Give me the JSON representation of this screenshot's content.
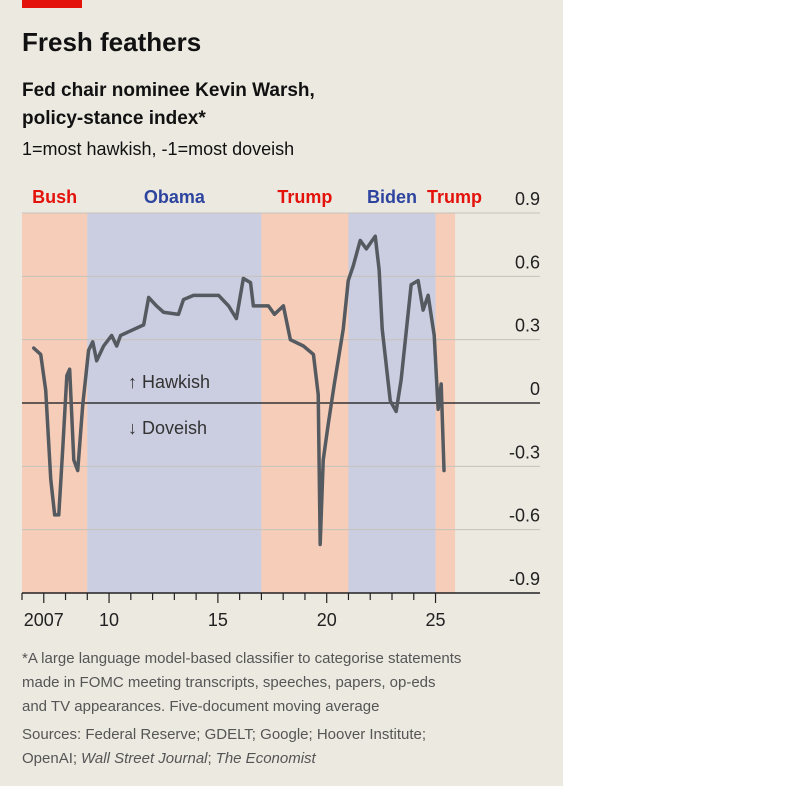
{
  "chart_data": {
    "type": "line",
    "title": "Fresh feathers",
    "subtitle": [
      "Fed chair nominee Kevin Warsh,",
      "policy-stance index*"
    ],
    "scale_note": "1=most hawkish, -1=most doveish",
    "annotations": [
      "↑ Hawkish",
      "↓ Doveish"
    ],
    "notes": [
      "*A large language model-based classifier to categorise statements",
      "made in FOMC meeting transcripts, speeches, papers, op-eds",
      "and TV appearances. Five-document moving average",
      "Sources: Federal Reserve; GDELT; Google; Hoover Institute;"
    ],
    "source_last_line": [
      "OpenAI;",
      "Wall Street Journal",
      ";",
      "The Economist"
    ],
    "periods": [
      {
        "name": "Bush",
        "start": 2006,
        "end": 2009.0,
        "color": "#f6cdb8",
        "label_color": "#e3120b"
      },
      {
        "name": "Obama",
        "start": 2009.0,
        "end": 2017.0,
        "color": "#cbcde0",
        "label_color": "#2e45a0"
      },
      {
        "name": "Trump",
        "start": 2017.0,
        "end": 2021.0,
        "color": "#f6cdb8",
        "label_color": "#e3120b"
      },
      {
        "name": "Biden",
        "start": 2021.0,
        "end": 2025.0,
        "color": "#cbcde0",
        "label_color": "#2e45a0"
      },
      {
        "name": "Trump",
        "start": 2025.0,
        "end": 2025.9,
        "color": "#f6cdb8",
        "label_color": "#e3120b"
      }
    ],
    "x": [
      2006.54,
      2006.86,
      2007.09,
      2007.32,
      2007.5,
      2007.69,
      2007.87,
      2008.06,
      2008.19,
      2008.38,
      2008.56,
      2008.79,
      2009.06,
      2009.25,
      2009.43,
      2009.75,
      2010.12,
      2010.35,
      2010.53,
      2011.59,
      2011.82,
      2012.18,
      2012.5,
      2013.19,
      2013.42,
      2013.88,
      2015.03,
      2015.49,
      2015.85,
      2016.17,
      2016.5,
      2016.63,
      2017.32,
      2017.6,
      2018.01,
      2018.33,
      2018.93,
      2019.39,
      2019.61,
      2019.7,
      2019.84,
      2020.07,
      2020.35,
      2020.76,
      2020.99,
      2021.22,
      2021.54,
      2021.82,
      2022.23,
      2022.41,
      2022.55,
      2022.92,
      2023.19,
      2023.42,
      2023.88,
      2024.2,
      2024.43,
      2024.66,
      2024.94,
      2025.12,
      2025.26,
      2025.39
    ],
    "series": [
      {
        "color": "#555a60",
        "values": [
          0.26,
          0.23,
          0.06,
          -0.36,
          -0.53,
          -0.53,
          -0.22,
          0.13,
          0.16,
          -0.27,
          -0.32,
          -0.01,
          0.25,
          0.29,
          0.2,
          0.27,
          0.32,
          0.27,
          0.32,
          0.37,
          0.5,
          0.46,
          0.43,
          0.42,
          0.49,
          0.51,
          0.51,
          0.46,
          0.4,
          0.59,
          0.57,
          0.46,
          0.46,
          0.42,
          0.46,
          0.3,
          0.27,
          0.23,
          0.04,
          -0.67,
          -0.27,
          -0.1,
          0.09,
          0.35,
          0.58,
          0.65,
          0.77,
          0.73,
          0.79,
          0.63,
          0.35,
          0.01,
          -0.04,
          0.11,
          0.56,
          0.58,
          0.44,
          0.51,
          0.32,
          -0.03,
          0.09,
          -0.32
        ]
      }
    ],
    "xlim": [
      2006,
      2029.8
    ],
    "ylim": [
      -0.9,
      0.9
    ],
    "xticks": [
      {
        "value": 2007,
        "label": "2007"
      },
      {
        "value": 2010,
        "label": "10"
      },
      {
        "value": 2015,
        "label": "15"
      },
      {
        "value": 2020,
        "label": "20"
      },
      {
        "value": 2025,
        "label": "25"
      }
    ],
    "xminor": [
      2006,
      2008,
      2009,
      2011,
      2012,
      2013,
      2014,
      2016,
      2017,
      2018,
      2019,
      2021,
      2022,
      2023,
      2024
    ],
    "yticks": [
      0.9,
      0.6,
      0.3,
      0,
      -0.3,
      -0.6,
      -0.9
    ],
    "grid": true
  }
}
